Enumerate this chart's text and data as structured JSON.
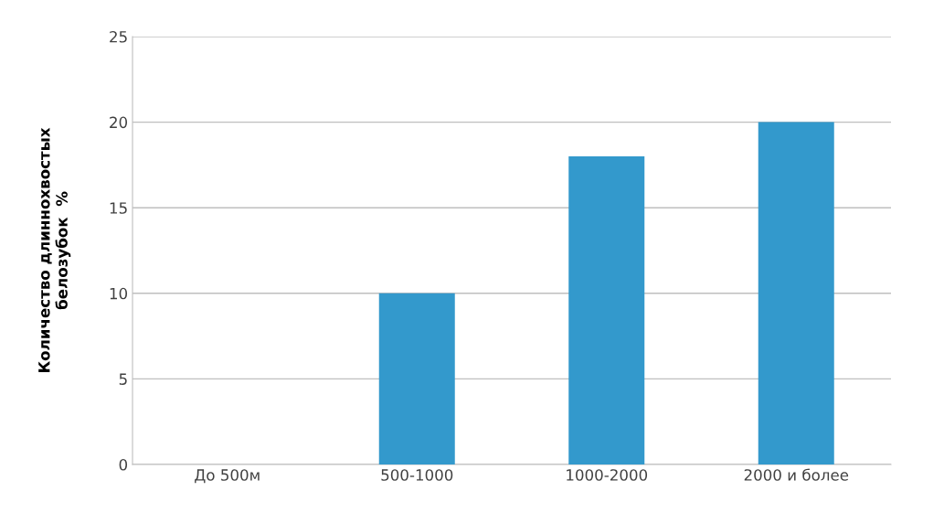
{
  "chart_data": {
    "type": "bar",
    "ylabel": "Количество длиннохвостых\nбелозубок  %",
    "categories": [
      "До 500м",
      "500-1000",
      "1000-2000",
      "2000 и более"
    ],
    "values": [
      0,
      10,
      18,
      20
    ],
    "color": "#3399cc",
    "ylim": [
      0,
      25
    ],
    "yticks": [
      0,
      5,
      10,
      15,
      20,
      25
    ],
    "grid": "y",
    "legend": false
  }
}
